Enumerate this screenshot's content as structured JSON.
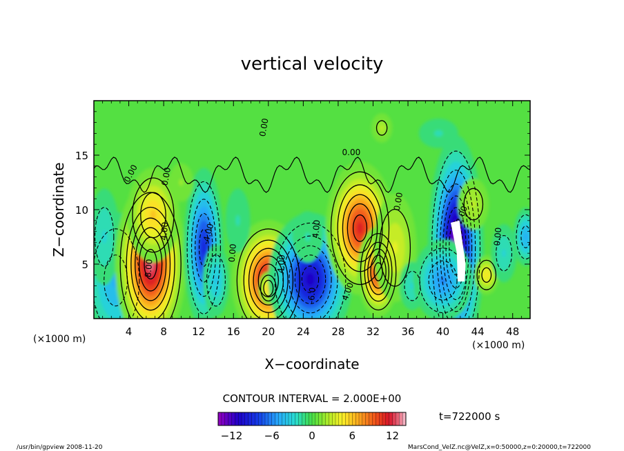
{
  "chart_data": {
    "type": "contour",
    "title": "vertical velocity",
    "xlabel": "X−coordinate",
    "ylabel": "Z−coordinate",
    "x_unit_left": "(×1000 m)",
    "x_unit_right": "(×1000 m)",
    "xlim": [
      0,
      50
    ],
    "ylim": [
      0,
      20
    ],
    "xticks": [
      4,
      8,
      12,
      16,
      20,
      24,
      28,
      32,
      36,
      40,
      44,
      48
    ],
    "yticks": [
      5,
      10,
      15
    ],
    "contour_interval_text": "CONTOUR INTERVAL = 2.000E+00",
    "time_text": "t=722000 s",
    "colorbar": {
      "vmin": -14,
      "vmax": 14,
      "ticks": [
        -12,
        -6,
        0,
        6,
        12
      ],
      "tick_labels": [
        "−12",
        "−6",
        "0",
        "6",
        "12"
      ]
    },
    "contour_labels": [
      {
        "text": "0.00",
        "x": 4.5,
        "y": 13.2,
        "rot": -62
      },
      {
        "text": "0.00",
        "x": 8.6,
        "y": 13.0,
        "rot": -80
      },
      {
        "text": "0.00",
        "x": 19.8,
        "y": 17.5,
        "rot": -80
      },
      {
        "text": "0.00",
        "x": 29.5,
        "y": 15.0,
        "rot": 0
      },
      {
        "text": "0.00",
        "x": 35.2,
        "y": 10.7,
        "rot": -80
      },
      {
        "text": "0.00",
        "x": 46.6,
        "y": 7.5,
        "rot": -85
      },
      {
        "text": "0.00",
        "x": 16.2,
        "y": 6.0,
        "rot": -85
      },
      {
        "text": "8.00",
        "x": 6.6,
        "y": 4.6,
        "rot": -85
      },
      {
        "text": "4.00",
        "x": 8.4,
        "y": 8.0,
        "rot": -85
      },
      {
        "text": "4.00",
        "x": 21.8,
        "y": 5.0,
        "rot": -85
      },
      {
        "text": "4.00",
        "x": 25.8,
        "y": 8.2,
        "rot": -85
      },
      {
        "text": "4.00",
        "x": 29.4,
        "y": 2.4,
        "rot": -70
      },
      {
        "text": "-6.0",
        "x": 25.3,
        "y": 2.1,
        "rot": -85
      },
      {
        "text": "-4.00",
        "x": 13.4,
        "y": 7.7,
        "rot": -75
      },
      {
        "text": "-2.00",
        "x": 42.4,
        "y": 9.3,
        "rot": -70
      }
    ],
    "cells": [
      {
        "x": 2.5,
        "y": 3.5,
        "v": -5,
        "sx": 2.0,
        "sy": 3.5
      },
      {
        "x": 1.2,
        "y": 7.5,
        "v": -3,
        "sx": 1.2,
        "sy": 3.0
      },
      {
        "x": 6.5,
        "y": 5.0,
        "v": 13,
        "sx": 1.8,
        "sy": 3.4
      },
      {
        "x": 6.8,
        "y": 9.5,
        "v": 6,
        "sx": 1.6,
        "sy": 2.3
      },
      {
        "x": 12.6,
        "y": 6.5,
        "v": -9,
        "sx": 1.1,
        "sy": 3.5
      },
      {
        "x": 14.0,
        "y": 3.5,
        "v": -4,
        "sx": 0.9,
        "sy": 2.0
      },
      {
        "x": 20.0,
        "y": 3.5,
        "v": 12,
        "sx": 1.9,
        "sy": 2.5
      },
      {
        "x": 20.0,
        "y": 2.8,
        "v": 6,
        "sx": 0.6,
        "sy": 0.8
      },
      {
        "x": 24.8,
        "y": 3.6,
        "v": -11,
        "sx": 2.2,
        "sy": 2.8
      },
      {
        "x": 24.5,
        "y": 7.5,
        "v": -2,
        "sx": 1.5,
        "sy": 2.0
      },
      {
        "x": 30.5,
        "y": 8.3,
        "v": 11,
        "sx": 1.8,
        "sy": 2.8
      },
      {
        "x": 32.6,
        "y": 4.3,
        "v": 11,
        "sx": 1.1,
        "sy": 1.9
      },
      {
        "x": 34.5,
        "y": 6.5,
        "v": 4,
        "sx": 1.5,
        "sy": 3.0
      },
      {
        "x": 36.5,
        "y": 3.0,
        "v": -3,
        "sx": 1.0,
        "sy": 1.5
      },
      {
        "x": 41.5,
        "y": 6.5,
        "v": -14,
        "sx": 1.4,
        "sy": 4.5
      },
      {
        "x": 40.0,
        "y": 3.5,
        "v": -6,
        "sx": 1.8,
        "sy": 2.0
      },
      {
        "x": 43.5,
        "y": 10.5,
        "v": 3,
        "sx": 1.2,
        "sy": 1.6
      },
      {
        "x": 45.0,
        "y": 4.0,
        "v": 5,
        "sx": 0.8,
        "sy": 1.0
      },
      {
        "x": 47.0,
        "y": 6.0,
        "v": -3,
        "sx": 1.0,
        "sy": 1.8
      },
      {
        "x": 49.5,
        "y": 7.5,
        "v": -5,
        "sx": 0.8,
        "sy": 1.5
      },
      {
        "x": 16.5,
        "y": 9.0,
        "v": -2,
        "sx": 1.2,
        "sy": 2.5
      },
      {
        "x": 10.0,
        "y": 12.5,
        "v": 2,
        "sx": 1.2,
        "sy": 1.5
      },
      {
        "x": 33.0,
        "y": 17.5,
        "v": 2.5,
        "sx": 0.9,
        "sy": 1.0
      },
      {
        "x": 39.5,
        "y": 17.0,
        "v": -1.5,
        "sx": 2.5,
        "sy": 1.5
      }
    ]
  },
  "footer": {
    "left_text": "/usr/bin/gpview   2008-11-20",
    "right_text": "MarsCond_VelZ.nc@VelZ,x=0:50000,z=0:20000,t=722000"
  }
}
